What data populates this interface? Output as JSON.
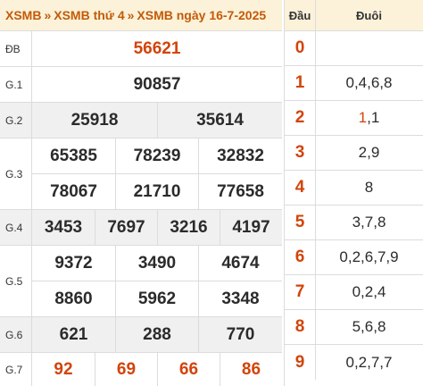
{
  "breadcrumb": {
    "items": [
      "XSMB",
      "XSMB thứ 4",
      "XSMB ngày 16-7-2025"
    ],
    "separator": "»"
  },
  "prizes": [
    {
      "label": "ĐB",
      "numbers": [
        "56621"
      ],
      "red": true
    },
    {
      "label": "G.1",
      "numbers": [
        "90857"
      ]
    },
    {
      "label": "G.2",
      "numbers": [
        "25918",
        "35614"
      ]
    },
    {
      "label": "G.3",
      "numbers": [
        "65385",
        "78239",
        "32832",
        "78067",
        "21710",
        "77658"
      ]
    },
    {
      "label": "G.4",
      "numbers": [
        "3453",
        "7697",
        "3216",
        "4197"
      ]
    },
    {
      "label": "G.5",
      "numbers": [
        "9372",
        "3490",
        "4674",
        "8860",
        "5962",
        "3348"
      ]
    },
    {
      "label": "G.6",
      "numbers": [
        "621",
        "288",
        "770"
      ]
    },
    {
      "label": "G.7",
      "numbers": [
        "92",
        "69",
        "66",
        "86"
      ],
      "red": true
    }
  ],
  "loto_table": {
    "header_dau": "Đầu",
    "header_duoi": "Đuôi",
    "rows": [
      {
        "dau": "0",
        "duoi": ""
      },
      {
        "dau": "1",
        "duoi": "0,4,6,8"
      },
      {
        "dau": "2",
        "duoi_highlight": "1",
        "duoi_rest": ",1"
      },
      {
        "dau": "3",
        "duoi": "2,9"
      },
      {
        "dau": "4",
        "duoi": "8"
      },
      {
        "dau": "5",
        "duoi": "3,7,8"
      },
      {
        "dau": "6",
        "duoi": "0,2,6,7,9"
      },
      {
        "dau": "7",
        "duoi": "0,2,4"
      },
      {
        "dau": "8",
        "duoi": "5,6,8"
      },
      {
        "dau": "9",
        "duoi": "0,2,7,7"
      }
    ]
  },
  "colors": {
    "accent": "#c45a08",
    "number_red": "#d2440a",
    "header_bg": "#fbf2d9",
    "shade_bg": "#f0f0f0"
  }
}
